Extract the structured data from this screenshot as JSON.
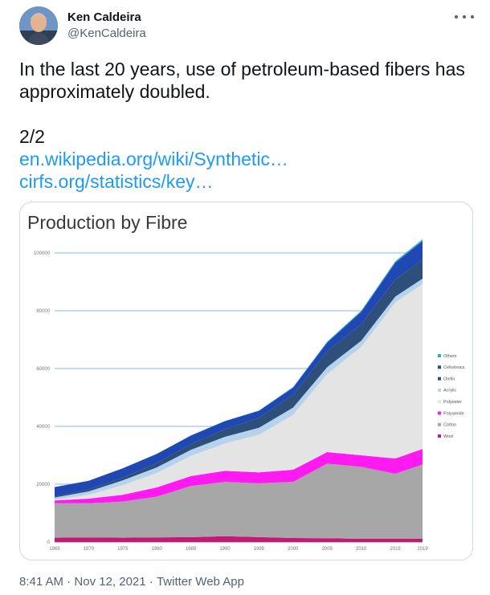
{
  "author": {
    "display_name": "Ken Caldeira",
    "handle": "@KenCaldeira"
  },
  "tweet": {
    "line1": "In the last 20 years, use of petroleum-based fibers has",
    "line2": "approximately doubled.",
    "counter": "2/2",
    "links": [
      "en.wikipedia.org/wiki/Synthetic…",
      "cirfs.org/statistics/key…"
    ]
  },
  "meta": {
    "time": "8:41 AM",
    "date": "Nov 12, 2021",
    "source": "Twitter Web App",
    "separator": "·"
  },
  "colors": {
    "link": "#1d9bf0",
    "Others": "#29a8d8",
    "Cellulosics": "#1f48b3",
    "Olefin": "#2d4f79",
    "Acrylic": "#b7d3ec",
    "Polyester": "#e4e4e4",
    "Polyamide": "#ff1af1",
    "Cotton": "#a7a7a7",
    "Wool": "#c61876"
  },
  "chart_data": {
    "type": "area",
    "title": "Production by Fibre",
    "stacked": true,
    "x": [
      1965,
      1970,
      1975,
      1980,
      1985,
      1990,
      1995,
      2000,
      2005,
      2010,
      2015,
      2019
    ],
    "x_ticks": [
      "1965",
      "1970",
      "1975",
      "1980",
      "1985",
      "1990",
      "1995",
      "2000",
      "2005",
      "2010",
      "2015",
      "2019"
    ],
    "y_ticks": [
      "0",
      "20000",
      "40000",
      "60000",
      "80000",
      "100000"
    ],
    "ylim": [
      0,
      100000
    ],
    "legend_position": "right",
    "series": [
      {
        "name": "Wool",
        "values": [
          1500,
          1600,
          1500,
          1600,
          1700,
          2000,
          1700,
          1400,
          1300,
          1100,
          1100,
          1100
        ]
      },
      {
        "name": "Cotton",
        "values": [
          11900,
          11800,
          12500,
          14100,
          17700,
          18800,
          18600,
          19400,
          25800,
          24900,
          22500,
          25700
        ]
      },
      {
        "name": "Polyamide",
        "values": [
          1000,
          1600,
          2300,
          3200,
          3400,
          3800,
          3800,
          4200,
          4000,
          4000,
          5300,
          5400
        ]
      },
      {
        "name": "Polyester",
        "values": [
          200,
          1300,
          3400,
          5000,
          7000,
          9500,
          13000,
          19000,
          27000,
          37500,
          54000,
          57000
        ]
      },
      {
        "name": "Acrylic",
        "values": [
          800,
          1200,
          1600,
          1900,
          2100,
          2300,
          2400,
          2500,
          2400,
          2100,
          2000,
          1900
        ]
      },
      {
        "name": "Olefin",
        "values": [
          300,
          600,
          1000,
          1500,
          2000,
          2600,
          3500,
          4500,
          5500,
          5800,
          6000,
          6500
        ]
      },
      {
        "name": "Cellulosics",
        "values": [
          3300,
          3100,
          3200,
          3200,
          2900,
          2800,
          2400,
          2400,
          3000,
          4200,
          5700,
          6500
        ]
      },
      {
        "name": "Others",
        "values": [
          0,
          0,
          0,
          0,
          100,
          100,
          100,
          200,
          300,
          400,
          500,
          600
        ]
      }
    ]
  }
}
